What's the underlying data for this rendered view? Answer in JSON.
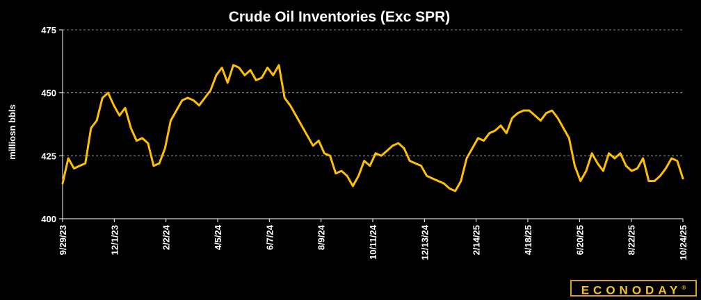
{
  "chart_data": {
    "type": "line",
    "title": "Crude Oil Inventories (Exc SPR)",
    "ylabel": "milliosn bbls",
    "xlabel": "",
    "ylim": [
      400,
      475
    ],
    "yticks": [
      400,
      425,
      450,
      475
    ],
    "grid": "horizontal dashed",
    "line_color": "#ffc000",
    "xtick_labels": [
      "9/29/23",
      "12/1/23",
      "2/2/24",
      "4/5/24",
      "6/7/24",
      "8/9/24",
      "10/11/24",
      "12/13/24",
      "2/14/25",
      "4/18/25",
      "6/20/25",
      "8/22/25",
      "10/24/25"
    ],
    "series": [
      {
        "values": [
          414,
          424,
          420,
          421,
          422,
          436,
          439,
          448,
          450,
          445,
          441,
          444,
          436,
          431,
          432,
          430,
          421,
          422,
          428,
          439,
          443,
          447,
          448,
          447,
          445,
          448,
          451,
          457,
          460,
          454,
          461,
          460,
          457,
          459,
          455,
          456,
          460,
          457,
          461,
          448,
          445,
          441,
          437,
          433,
          429,
          431,
          426,
          425,
          418,
          419,
          417,
          413,
          417,
          423,
          421,
          426,
          425,
          427,
          429,
          430,
          428,
          423,
          422,
          421,
          417,
          416,
          415,
          414,
          412,
          411,
          415,
          424,
          428,
          432,
          431,
          434,
          435,
          437,
          434,
          440,
          442,
          443,
          443,
          441,
          439,
          442,
          443,
          440,
          436,
          432,
          421,
          415,
          419,
          426,
          422,
          419,
          426,
          424,
          426,
          421,
          419,
          420,
          424,
          415,
          415,
          417,
          420,
          424,
          423,
          416
        ]
      }
    ],
    "logo_text": "ECONODAY",
    "logo_mark": "®"
  }
}
